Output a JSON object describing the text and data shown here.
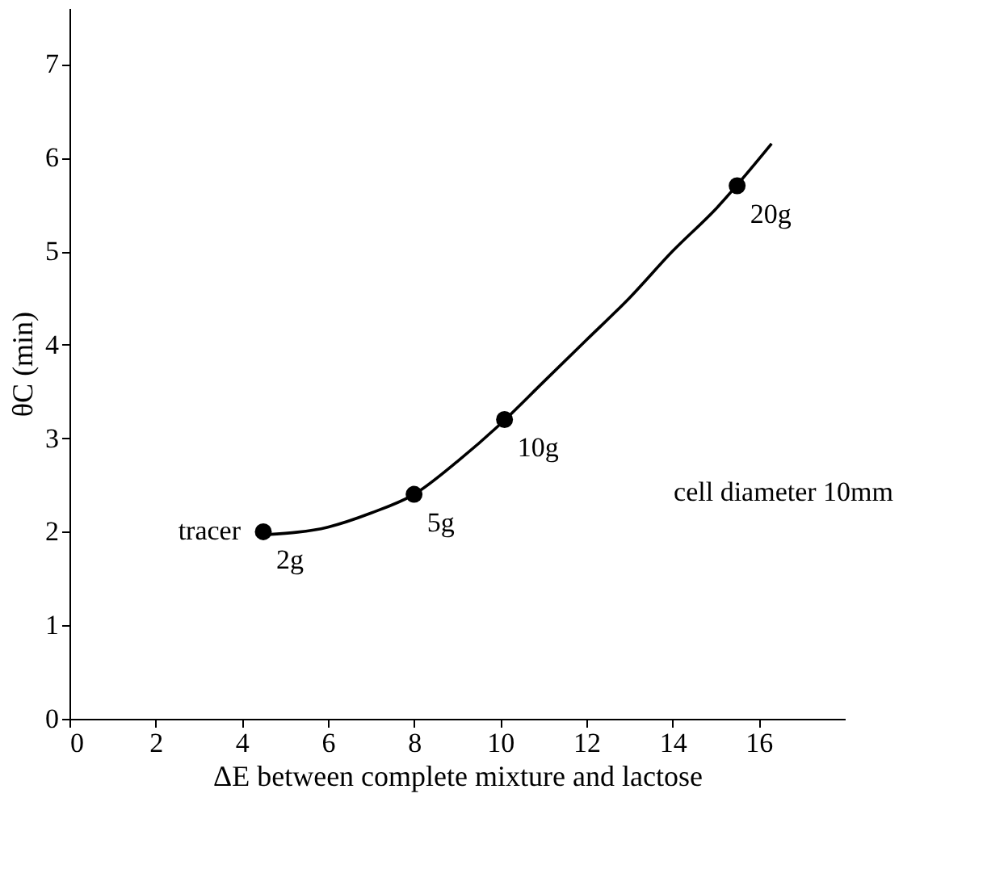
{
  "chart_data": {
    "type": "scatter",
    "xlabel": "ΔE between complete mixture and lactose",
    "ylabel": "θC (min)",
    "xlim": [
      0,
      18
    ],
    "xticks": [
      0,
      2,
      4,
      6,
      8,
      10,
      12,
      14,
      16
    ],
    "ylim": [
      0,
      7.6
    ],
    "yticks": [
      0,
      1,
      2,
      3,
      4,
      5,
      6,
      7
    ],
    "grid": false,
    "series": [
      {
        "type": "scatter",
        "color": "#000000",
        "marker": "circle",
        "x": [
          4.5,
          8.0,
          10.1,
          15.5
        ],
        "values": [
          2.0,
          2.4,
          3.2,
          5.7
        ]
      },
      {
        "type": "line",
        "color": "#000000",
        "line_style": "solid",
        "x": [
          4.6,
          6,
          7,
          8,
          9,
          10,
          11,
          12,
          13,
          14,
          15,
          16.3
        ],
        "values": [
          1.97,
          2.05,
          2.2,
          2.4,
          2.75,
          3.15,
          3.6,
          4.05,
          4.5,
          5.0,
          5.45,
          6.15
        ]
      }
    ],
    "annotations": [
      {
        "text": "2g",
        "x": 4.5,
        "y": 2.0
      },
      {
        "text": "5g",
        "x": 8.0,
        "y": 2.4
      },
      {
        "text": "10g",
        "x": 10.1,
        "y": 3.2
      },
      {
        "text": "20g",
        "x": 15.5,
        "y": 5.7
      },
      {
        "text": "tracer",
        "x": 4.5,
        "y": 2.0
      },
      "cell diameter 10mm"
    ]
  }
}
